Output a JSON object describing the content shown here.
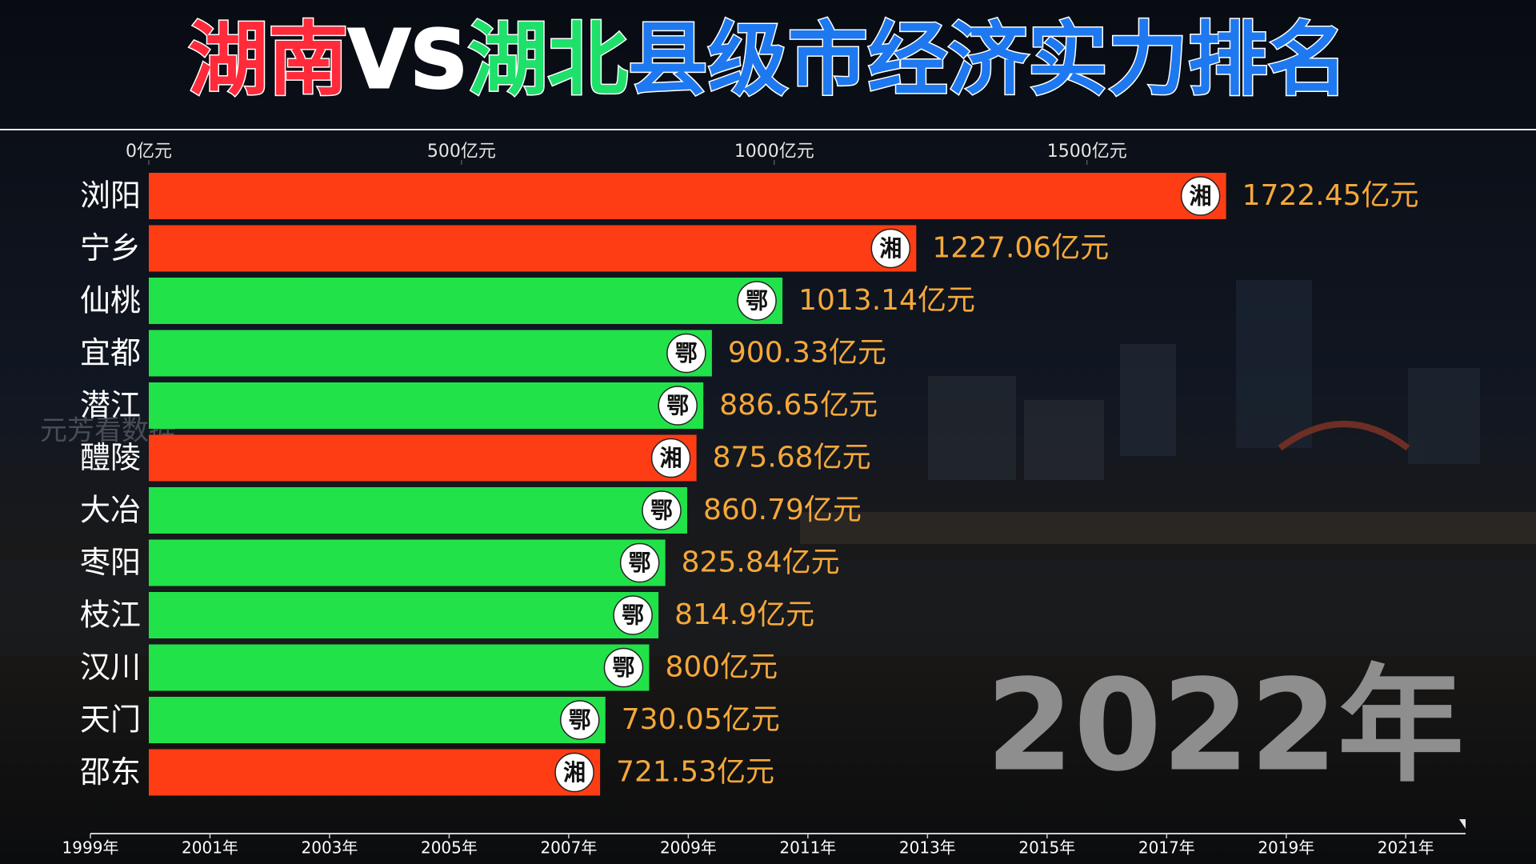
{
  "chart_data": {
    "type": "bar",
    "orientation": "horizontal",
    "title": [
      {
        "text": "湖南",
        "color": "#ff2a3a"
      },
      {
        "text": "VS",
        "color": "#ffffff"
      },
      {
        "text": "湖北",
        "color": "#1fe06a"
      },
      {
        "text": "县级市经济实力排名",
        "color": "#1e78f0"
      }
    ],
    "categories": [
      "浏阳",
      "宁乡",
      "仙桃",
      "宜都",
      "潜江",
      "醴陵",
      "大冶",
      "枣阳",
      "枝江",
      "汉川",
      "天门",
      "邵东"
    ],
    "values": [
      1722.45,
      1227.06,
      1013.14,
      900.33,
      886.65,
      875.68,
      860.79,
      825.84,
      814.9,
      800,
      730.05,
      721.53
    ],
    "value_labels": [
      "1722.45亿元",
      "1227.06亿元",
      "1013.14亿元",
      "900.33亿元",
      "886.65亿元",
      "875.68亿元",
      "860.79亿元",
      "825.84亿元",
      "814.9亿元",
      "800亿元",
      "730.05亿元",
      "721.53亿元"
    ],
    "badges": [
      "湘",
      "湘",
      "鄂",
      "鄂",
      "鄂",
      "湘",
      "鄂",
      "鄂",
      "鄂",
      "鄂",
      "鄂",
      "湘"
    ],
    "colors": [
      "#ff3d14",
      "#ff3d14",
      "#22e24a",
      "#22e24a",
      "#22e24a",
      "#ff3d14",
      "#22e24a",
      "#22e24a",
      "#22e24a",
      "#22e24a",
      "#22e24a",
      "#ff3d14"
    ],
    "value_label_color": "#f5a83a",
    "xlim": [
      0,
      2200
    ],
    "xticks": [
      {
        "value": 0,
        "label": "0亿元"
      },
      {
        "value": 500,
        "label": "500亿元"
      },
      {
        "value": 1000,
        "label": "1000亿元"
      },
      {
        "value": 1500,
        "label": "1500亿元"
      }
    ],
    "watermark": "元芳看数据",
    "timeline": {
      "xlim": [
        1999,
        2022
      ],
      "xticks": [
        {
          "value": 1999,
          "label": "1999年"
        },
        {
          "value": 2001,
          "label": "2001年"
        },
        {
          "value": 2003,
          "label": "2003年"
        },
        {
          "value": 2005,
          "label": "2005年"
        },
        {
          "value": 2007,
          "label": "2007年"
        },
        {
          "value": 2009,
          "label": "2009年"
        },
        {
          "value": 2011,
          "label": "2011年"
        },
        {
          "value": 2013,
          "label": "2013年"
        },
        {
          "value": 2015,
          "label": "2015年"
        },
        {
          "value": 2017,
          "label": "2017年"
        },
        {
          "value": 2019,
          "label": "2019年"
        },
        {
          "value": 2021,
          "label": "2021年"
        }
      ],
      "current": {
        "value": 2022,
        "label": "2022年"
      }
    }
  }
}
